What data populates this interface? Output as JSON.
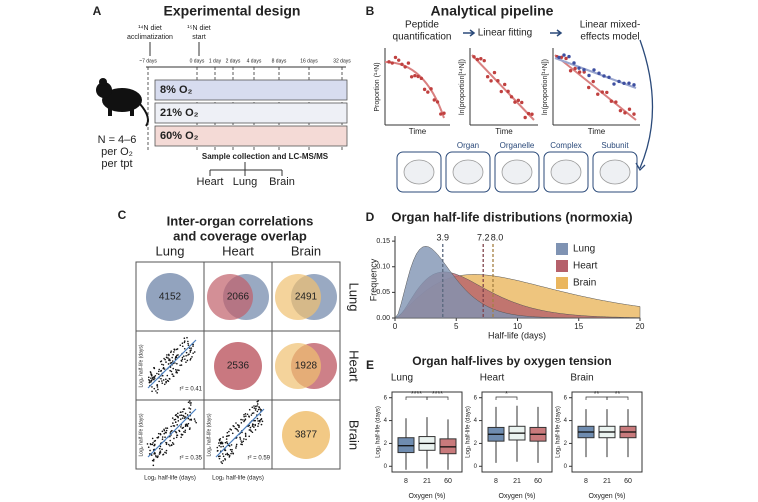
{
  "panel_a": {
    "letter": "A",
    "title": "Experimental design",
    "acclimatization_label": [
      "¹⁴N diet",
      "acclimatization"
    ],
    "start_label": [
      "¹⁵N diet",
      "start"
    ],
    "timepoints": [
      "~7 days",
      "0 days",
      "1 day",
      "2 days",
      "4 days",
      "8 days",
      "16 days",
      "32 days"
    ],
    "conditions": [
      "8% O₂",
      "21% O₂",
      "60% O₂"
    ],
    "sample_size": [
      "N = 4–6",
      "per O₂",
      "per tpt"
    ],
    "collection": "Sample collection and LC-MS/MS",
    "organs": [
      "Heart",
      "Lung",
      "Brain"
    ]
  },
  "panel_b": {
    "letter": "B",
    "title": "Analytical pipeline",
    "steps": [
      [
        "Peptide",
        "quantification"
      ],
      [
        "Linear fitting"
      ],
      [
        "Linear mixed-",
        "effects model"
      ]
    ],
    "y_labels": [
      "Proportion (¹⁴N)",
      "ln(proportion[¹⁴N])",
      "ln(proportion[¹⁴N])"
    ],
    "x_label": "Time",
    "levels": [
      "Organ",
      "Organelle",
      "Complex",
      "Subunit"
    ]
  },
  "panel_c": {
    "letter": "C",
    "title": [
      "Inter-organ correlations",
      "and coverage overlap"
    ],
    "organs": [
      "Lung",
      "Heart",
      "Brain"
    ],
    "counts": {
      "lung": 4152,
      "heart": 2536,
      "brain": 3877
    },
    "overlaps": {
      "lung_heart": 2066,
      "lung_brain": 2491,
      "heart_brain": 1928
    },
    "correlations": {
      "lung_heart": "r² = 0.41",
      "lung_brain": "r² = 0.35",
      "heart_brain": "r² = 0.59"
    },
    "axis_label": "Log₂ half-life (days)"
  },
  "panel_d": {
    "letter": "D",
    "title": "Organ half-life distributions (normoxia)",
    "x_label": "Half-life (days)",
    "y_label": "Frequency",
    "xlim": [
      0,
      20
    ],
    "ylim": [
      0,
      0.16
    ],
    "xticks": [
      0,
      5,
      10,
      15,
      20
    ],
    "yticks": [
      {
        "value": 0,
        "label": "0.00"
      },
      {
        "value": 0.05,
        "label": "0.05"
      },
      {
        "value": 0.1,
        "label": "0.10"
      },
      {
        "value": 0.15,
        "label": "0.15"
      }
    ],
    "series": [
      {
        "name": "Lung",
        "color": "#7f93b3",
        "median": {
          "value": 3.9,
          "label": "3.9"
        }
      },
      {
        "name": "Heart",
        "color": "#b5606b",
        "median": {
          "value": 7.2,
          "label": "7.2"
        }
      },
      {
        "name": "Brain",
        "color": "#eab65e",
        "median": {
          "value": 8,
          "label": "8.0"
        }
      }
    ]
  },
  "panel_e": {
    "letter": "E",
    "title": "Organ half-lives by oxygen tension",
    "organs": [
      "Lung",
      "Heart",
      "Brain"
    ],
    "x_label": "Oxygen (%)",
    "y_label": "Log₂ half-life (days)",
    "oxygen": [
      8,
      21,
      60
    ],
    "ylim": [
      -0.5,
      6.5
    ],
    "yticks": [
      0,
      2,
      4,
      6
    ],
    "colors": [
      "#6f8cb0",
      "#eaf3f0",
      "#c97a7c"
    ],
    "significance": [
      [
        "****",
        "****"
      ],
      [
        "*"
      ],
      [
        "**",
        "**"
      ]
    ],
    "boxes": [
      [
        {
          "low": -0.3,
          "q1": 1.2,
          "median": 1.8,
          "q3": 2.5,
          "high": 4.2
        },
        {
          "low": -0.2,
          "q1": 1.4,
          "median": 2.0,
          "q3": 2.6,
          "high": 4.3
        },
        {
          "low": -0.3,
          "q1": 1.1,
          "median": 1.7,
          "q3": 2.4,
          "high": 4.1
        }
      ],
      [
        {
          "low": 0.3,
          "q1": 2.2,
          "median": 2.8,
          "q3": 3.4,
          "high": 5.2
        },
        {
          "low": 0.4,
          "q1": 2.3,
          "median": 2.9,
          "q3": 3.5,
          "high": 5.3
        },
        {
          "low": 0.3,
          "q1": 2.2,
          "median": 2.8,
          "q3": 3.4,
          "high": 5.2
        }
      ],
      [
        {
          "low": 0.8,
          "q1": 2.5,
          "median": 3.0,
          "q3": 3.5,
          "high": 5.0
        },
        {
          "low": 0.8,
          "q1": 2.5,
          "median": 3.0,
          "q3": 3.5,
          "high": 5.0
        },
        {
          "low": 0.8,
          "q1": 2.5,
          "median": 3.0,
          "q3": 3.5,
          "high": 5.0
        }
      ]
    ]
  }
}
